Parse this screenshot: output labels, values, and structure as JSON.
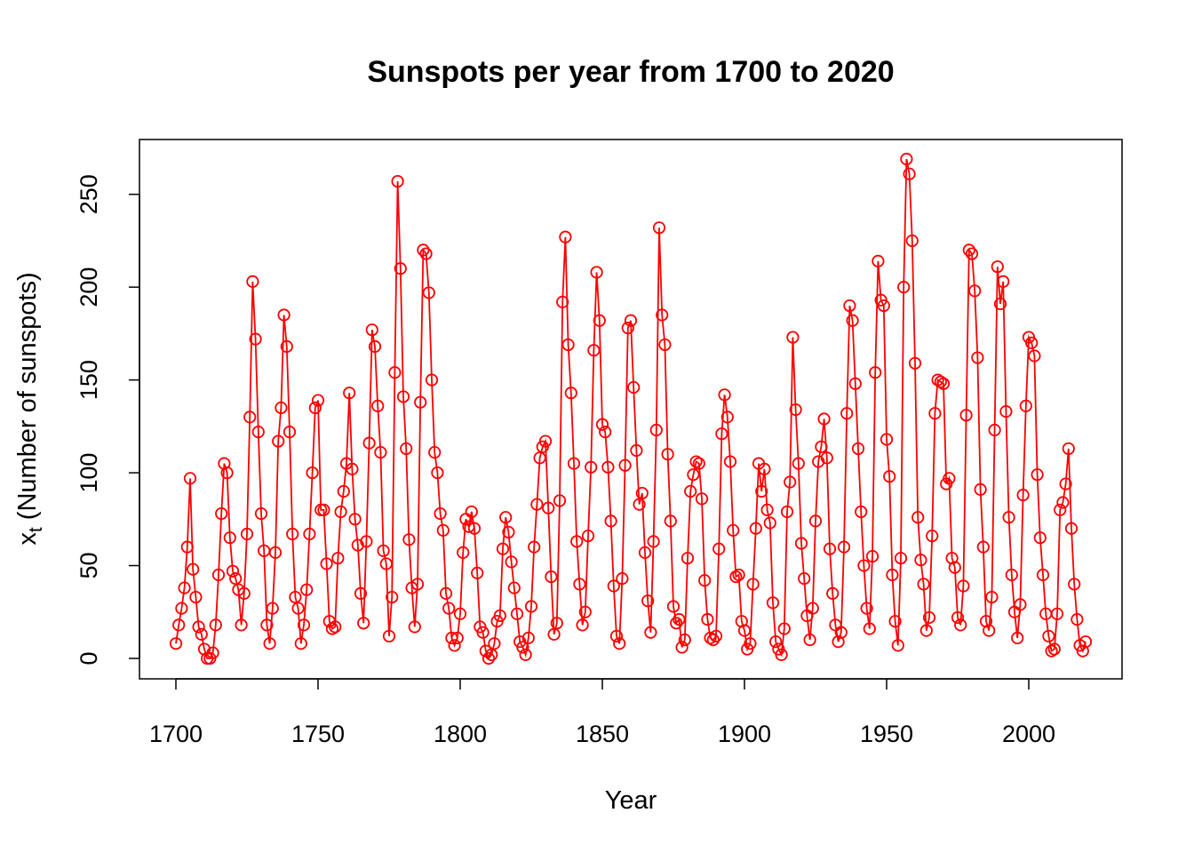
{
  "chart_data": {
    "type": "line",
    "title": "Sunspots per year from 1700 to 2020",
    "xlabel": "Year",
    "ylabel_main": "x",
    "ylabel_sub": "t",
    "ylabel_rest": " (Number of sunspots)",
    "xlim": [
      1700,
      2020
    ],
    "ylim": [
      0,
      269
    ],
    "x_ticks": [
      1700,
      1750,
      1800,
      1850,
      1900,
      1950,
      2000
    ],
    "y_ticks": [
      0,
      50,
      100,
      150,
      200,
      250
    ],
    "grid": false,
    "markers": "open-circle",
    "color": "#ff0000",
    "start_year": 1700,
    "values": [
      8,
      18,
      27,
      38,
      60,
      97,
      48,
      33,
      17,
      13,
      5,
      0,
      0,
      3,
      18,
      45,
      78,
      105,
      100,
      65,
      47,
      43,
      37,
      18,
      35,
      67,
      130,
      203,
      172,
      122,
      78,
      58,
      18,
      8,
      27,
      57,
      117,
      135,
      185,
      168,
      122,
      67,
      33,
      27,
      8,
      18,
      37,
      67,
      100,
      135,
      139,
      80,
      80,
      51,
      20,
      16,
      17,
      54,
      79,
      90,
      105,
      143,
      102,
      75,
      61,
      35,
      19,
      63,
      116,
      177,
      168,
      136,
      111,
      58,
      51,
      12,
      33,
      154,
      257,
      210,
      141,
      113,
      64,
      38,
      17,
      40,
      138,
      220,
      218,
      197,
      150,
      111,
      100,
      78,
      69,
      35,
      27,
      11,
      7,
      11,
      24,
      57,
      75,
      71,
      79,
      70,
      46,
      17,
      14,
      4,
      0,
      2,
      8,
      20,
      23,
      59,
      76,
      68,
      52,
      38,
      24,
      9,
      6,
      2,
      11,
      28,
      60,
      83,
      108,
      114,
      117,
      81,
      44,
      13,
      19,
      85,
      192,
      227,
      169,
      143,
      105,
      63,
      40,
      18,
      25,
      66,
      103,
      166,
      208,
      182,
      126,
      122,
      103,
      74,
      39,
      12,
      8,
      43,
      104,
      178,
      182,
      146,
      112,
      83,
      89,
      57,
      31,
      14,
      63,
      123,
      232,
      185,
      169,
      110,
      74,
      28,
      19,
      21,
      6,
      10,
      54,
      90,
      99,
      106,
      105,
      86,
      42,
      21,
      11,
      10,
      12,
      59,
      121,
      142,
      130,
      106,
      69,
      44,
      45,
      20,
      15,
      5,
      8,
      40,
      70,
      105,
      90,
      102,
      80,
      73,
      30,
      9,
      5,
      2,
      16,
      79,
      95,
      173,
      134,
      105,
      62,
      43,
      23,
      10,
      27,
      74,
      106,
      114,
      129,
      108,
      59,
      35,
      18,
      9,
      14,
      60,
      132,
      190,
      182,
      148,
      113,
      79,
      50,
      27,
      16,
      55,
      154,
      214,
      193,
      190,
      118,
      98,
      45,
      20,
      7,
      54,
      200,
      269,
      261,
      225,
      159,
      76,
      53,
      40,
      15,
      22,
      66,
      132,
      150,
      149,
      148,
      94,
      97,
      54,
      49,
      22,
      18,
      39,
      131,
      220,
      218,
      198,
      162,
      91,
      60,
      20,
      15,
      33,
      123,
      211,
      191,
      203,
      133,
      76,
      45,
      25,
      11,
      29,
      88,
      136,
      173,
      170,
      163,
      99,
      65,
      45,
      24,
      12,
      4,
      5,
      24,
      80,
      84,
      94,
      113,
      70,
      40,
      21,
      7,
      4,
      9
    ]
  }
}
